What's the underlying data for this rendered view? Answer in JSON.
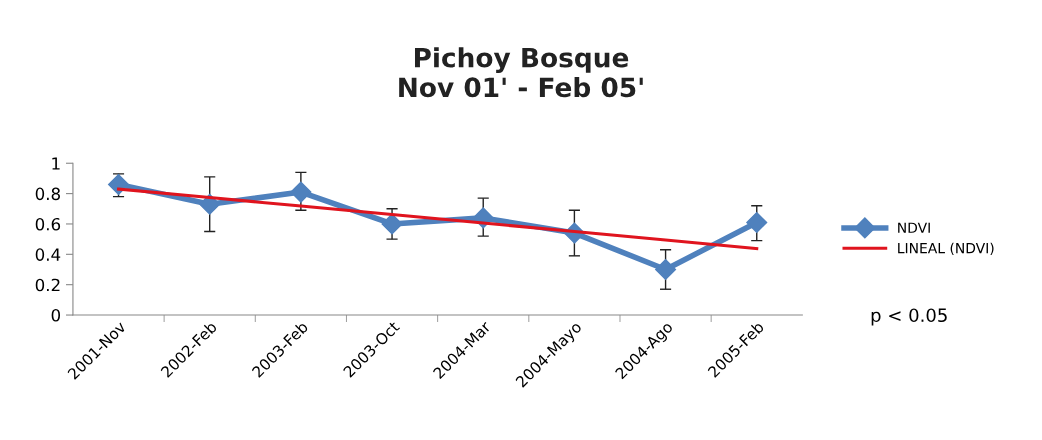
{
  "chart_data": {
    "type": "line",
    "title": "Pichoy Bosque\nNov 01' - Feb 05'",
    "categories": [
      "2001-Nov",
      "2002-Feb",
      "2003-Feb",
      "2003-Oct",
      "2004-Mar",
      "2004-Mayo",
      "2004-Ago",
      "2005-Feb"
    ],
    "series": [
      {
        "name": "NDVI",
        "color": "#4f81bd",
        "marker": "diamond",
        "values": [
          0.86,
          0.73,
          0.81,
          0.6,
          0.64,
          0.54,
          0.3,
          0.61
        ],
        "errors": [
          [
            0.78,
            0.93
          ],
          [
            0.55,
            0.91
          ],
          [
            0.69,
            0.94
          ],
          [
            0.5,
            0.7
          ],
          [
            0.52,
            0.77
          ],
          [
            0.39,
            0.69
          ],
          [
            0.17,
            0.43
          ],
          [
            0.49,
            0.72
          ]
        ]
      },
      {
        "name": "LINEAL (NDVI)",
        "color": "#e0141e",
        "marker": "none",
        "values": [
          0.83,
          0.774,
          0.718,
          0.662,
          0.606,
          0.55,
          0.494,
          0.438
        ]
      }
    ],
    "ylim": [
      0,
      1
    ],
    "yticks": [
      0,
      0.2,
      0.4,
      0.6,
      0.8,
      1
    ],
    "grid": false,
    "legend": "right",
    "annotations": [
      "p < 0.05"
    ]
  }
}
